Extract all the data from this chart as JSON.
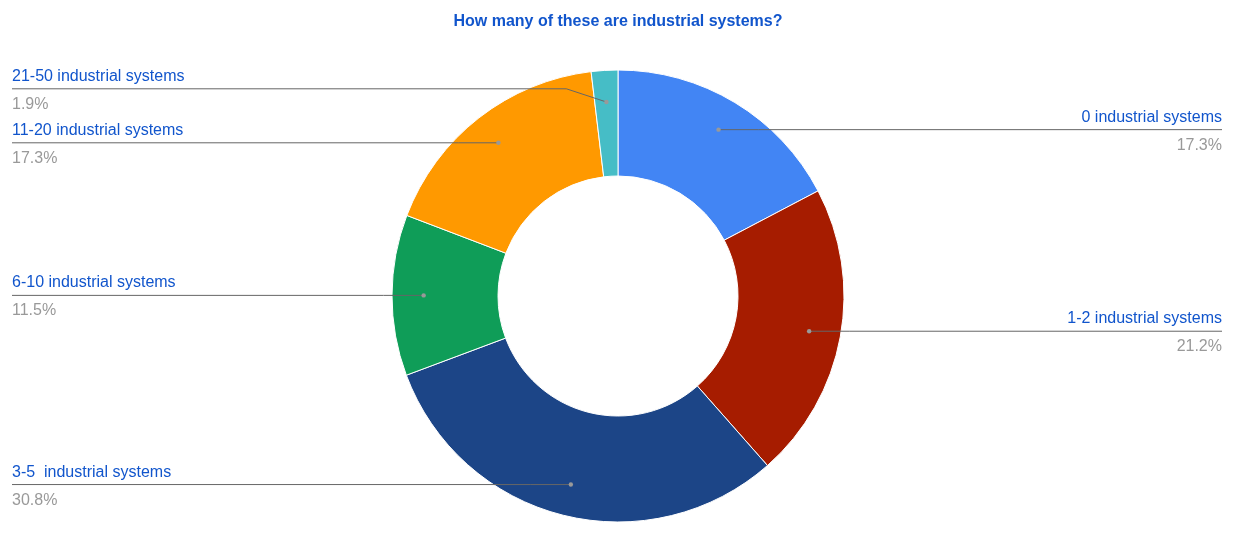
{
  "chart_data": {
    "type": "donut",
    "title": "How many of these are industrial systems?",
    "categories": [
      "0 industrial systems",
      "1-2 industrial systems",
      "3-5  industrial systems",
      "6-10 industrial systems",
      "11-20 industrial systems",
      "21-50 industrial systems"
    ],
    "values": [
      17.3,
      21.2,
      30.8,
      11.5,
      17.3,
      1.9
    ],
    "value_labels": [
      "17.3%",
      "21.2%",
      "30.8%",
      "11.5%",
      "17.3%",
      "1.9%"
    ],
    "colors": [
      "#4285f4",
      "#a61c00",
      "#1c4587",
      "#0f9d58",
      "#ff9900",
      "#46bdc6"
    ],
    "legend": false
  }
}
